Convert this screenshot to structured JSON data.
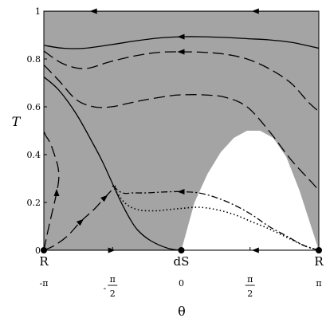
{
  "chart_data": {
    "type": "line",
    "title": "",
    "xlabel": "θ",
    "ylabel": "T",
    "xlim": [
      -3.14159,
      3.14159
    ],
    "ylim": [
      0,
      1
    ],
    "x_ticks": [
      {
        "value": -3.14159,
        "label": "-π"
      },
      {
        "value": -1.5708,
        "label": "-π/2"
      },
      {
        "value": 0,
        "label": "0"
      },
      {
        "value": 1.5708,
        "label": "π/2"
      },
      {
        "value": 3.14159,
        "label": "π"
      }
    ],
    "y_ticks": [
      {
        "value": 0,
        "label": "0"
      },
      {
        "value": 0.2,
        "label": "0.2"
      },
      {
        "value": 0.4,
        "label": "0.4"
      },
      {
        "value": 0.6,
        "label": "0.6"
      },
      {
        "value": 0.8,
        "label": "0.8"
      },
      {
        "value": 1,
        "label": "1"
      }
    ],
    "fixed_points": [
      {
        "label": "R",
        "x": -3.14159,
        "y": 0
      },
      {
        "label": "dS",
        "x": 0,
        "y": 0
      },
      {
        "label": "R",
        "x": 3.14159,
        "y": 0
      }
    ],
    "shaded_region": {
      "color": "#a4a4a4",
      "description_free": true
    },
    "unshaded_region_boundary": {
      "x": [
        0,
        0.3,
        0.6,
        0.9,
        1.2,
        1.5,
        1.8,
        2.1,
        2.4,
        2.7,
        3.0
      ],
      "y": [
        0,
        0.2,
        0.32,
        0.41,
        0.47,
        0.5,
        0.5,
        0.47,
        0.39,
        0.25,
        0.08
      ]
    },
    "series": [
      {
        "style": "solid",
        "x": [
          -3.14159,
          -2.7,
          -2.2,
          -1.6,
          -1.0,
          -0.5,
          0,
          0.5,
          1.0,
          1.5,
          2.0,
          2.5,
          2.9,
          3.14159
        ],
        "y": [
          0.857,
          0.845,
          0.845,
          0.86,
          0.877,
          0.888,
          0.893,
          0.893,
          0.89,
          0.885,
          0.88,
          0.87,
          0.855,
          0.845
        ],
        "arrows": [
          {
            "x": 0,
            "y": 0.893,
            "dir": "left"
          }
        ]
      },
      {
        "style": "long-dash",
        "x": [
          -3.14159,
          -2.7,
          -2.2,
          -1.6,
          -1.0,
          -0.5,
          0,
          0.5,
          1.0,
          1.5,
          2.0,
          2.5,
          2.9,
          3.14159
        ],
        "y": [
          0.833,
          0.78,
          0.76,
          0.79,
          0.815,
          0.828,
          0.83,
          0.828,
          0.82,
          0.8,
          0.76,
          0.7,
          0.62,
          0.58
        ],
        "arrows": [
          {
            "x": 0,
            "y": 0.83,
            "dir": "left"
          }
        ]
      },
      {
        "style": "long-dash",
        "x": [
          -3.14159,
          -2.8,
          -2.4,
          -2.0,
          -1.6,
          -1.2,
          -0.8,
          -0.3,
          0,
          0.5,
          1.0,
          1.5,
          2.0,
          2.5,
          3.0,
          3.14159
        ],
        "y": [
          0.775,
          0.71,
          0.63,
          0.6,
          0.6,
          0.615,
          0.63,
          0.645,
          0.65,
          0.65,
          0.64,
          0.6,
          0.5,
          0.38,
          0.28,
          0.25
        ]
      },
      {
        "style": "solid",
        "x": [
          -3.14159,
          -2.8,
          -2.4,
          -2.0,
          -1.8,
          -1.6,
          -1.4,
          -1.2,
          -1.0,
          -0.7,
          -0.3,
          0
        ],
        "y": [
          0.725,
          0.67,
          0.57,
          0.44,
          0.37,
          0.29,
          0.21,
          0.14,
          0.085,
          0.04,
          0.008,
          0
        ]
      },
      {
        "style": "dotted",
        "x": [
          -1.57,
          -1.3,
          -1.0,
          -0.6,
          -0.3,
          0,
          0.4,
          0.8,
          1.2,
          1.6,
          2.0,
          2.4,
          2.8,
          3.14159
        ],
        "y": [
          0.27,
          0.2,
          0.17,
          0.165,
          0.17,
          0.175,
          0.18,
          0.17,
          0.15,
          0.12,
          0.09,
          0.055,
          0.02,
          0
        ]
      },
      {
        "style": "dash-dot",
        "x": [
          -1.57,
          -1.35,
          -1.1,
          -0.8,
          -0.5,
          -0.2,
          0,
          0.4,
          0.8,
          1.2,
          1.6,
          2.0,
          2.4,
          2.8,
          3.14159
        ],
        "y": [
          0.27,
          0.24,
          0.24,
          0.24,
          0.243,
          0.245,
          0.245,
          0.24,
          0.22,
          0.19,
          0.15,
          0.1,
          0.06,
          0.02,
          0
        ],
        "arrows": [
          {
            "x": 0,
            "y": 0.245,
            "dir": "left"
          }
        ]
      },
      {
        "style": "long-dash",
        "x": [
          -3.14159,
          -2.9,
          -2.6,
          -2.3,
          -2.0,
          -1.8,
          -1.6,
          -1.5
        ],
        "y": [
          0,
          0.02,
          0.06,
          0.12,
          0.17,
          0.21,
          0.25,
          0.27
        ],
        "arrows": [
          {
            "x": -2.3,
            "y": 0.12,
            "dir": "up-right"
          },
          {
            "x": -1.75,
            "y": 0.22,
            "dir": "up-right"
          }
        ]
      },
      {
        "style": "long-dash",
        "x": [
          -3.14159,
          -3.05,
          -2.95,
          -2.85,
          -2.8,
          -2.82,
          -2.9,
          -3.0,
          -3.1,
          -3.14159
        ],
        "y": [
          0,
          0.08,
          0.16,
          0.24,
          0.3,
          0.35,
          0.4,
          0.45,
          0.48,
          0.5
        ],
        "arrows": [
          {
            "x": -2.85,
            "y": 0.24,
            "dir": "up"
          }
        ]
      },
      {
        "style": "solid",
        "x": [
          -3.14159,
          -2.5,
          -1.5,
          -0.5,
          0,
          0.5,
          1.5,
          2.5,
          3.14159
        ],
        "y": [
          1,
          1,
          1,
          1,
          1,
          1,
          1,
          1,
          1
        ],
        "arrows": [
          {
            "x": -2.0,
            "y": 1,
            "dir": "left"
          },
          {
            "x": 1.7,
            "y": 1,
            "dir": "left"
          }
        ]
      },
      {
        "style": "solid",
        "x": [
          -3.14159,
          -1.5,
          0,
          1.5,
          3.14159
        ],
        "y": [
          0,
          0,
          0,
          0,
          0
        ],
        "arrows": [
          {
            "x": -1.6,
            "y": 0,
            "dir": "right"
          },
          {
            "x": 1.7,
            "y": 0,
            "dir": "left"
          }
        ]
      }
    ],
    "grid": false,
    "legend": "none"
  }
}
